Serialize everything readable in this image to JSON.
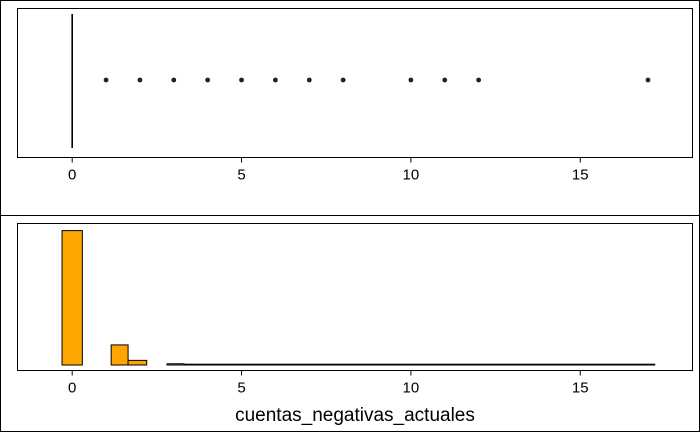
{
  "chart_data": [
    {
      "type": "box",
      "xlim": [
        -1.6,
        18.3
      ],
      "xticks": [
        0,
        5,
        10,
        15
      ],
      "xtick_labels": [
        "0",
        "5",
        "10",
        "15"
      ],
      "whisker": [
        0,
        0
      ],
      "outliers": [
        1,
        2,
        3,
        4,
        5,
        6,
        7,
        8,
        10,
        11,
        12,
        17
      ],
      "grid": false
    },
    {
      "type": "bar",
      "xlim": [
        -1.6,
        18.3
      ],
      "xticks": [
        0,
        5,
        10,
        15
      ],
      "xtick_labels": [
        "0",
        "5",
        "10",
        "15"
      ],
      "xlabel": "cuentas_negativas_actuales",
      "bins": [
        {
          "x0": -0.3,
          "x1": 0.3,
          "count": 0.87
        },
        {
          "x0": 1.15,
          "x1": 1.65,
          "count": 0.13
        },
        {
          "x0": 1.65,
          "x1": 2.2,
          "count": 0.03
        },
        {
          "x0": 2.8,
          "x1": 3.3,
          "count": 0.008
        },
        {
          "x0": 3.3,
          "x1": 17.2,
          "count": 0.002
        }
      ],
      "ylim": [
        0,
        1
      ],
      "bar_color": "#FFA500",
      "grid": false
    }
  ]
}
